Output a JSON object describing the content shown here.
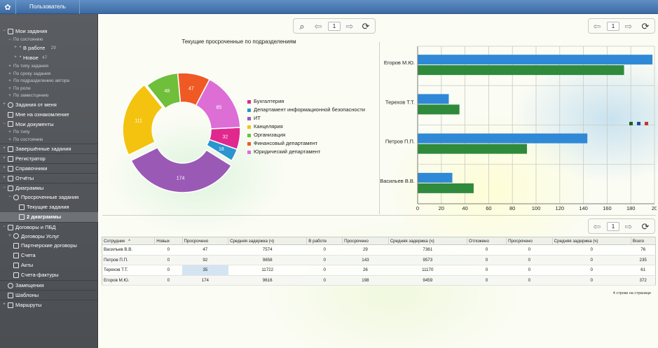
{
  "topbar": {
    "user_tab": "Пользователь",
    "logo_icon": "app-logo-icon"
  },
  "sidebar": {
    "items": [
      {
        "label": "Мои задания",
        "level": 0,
        "expander": "−",
        "icon": "checklist-icon",
        "bold": false
      },
      {
        "label": "По состоянию",
        "level": 1,
        "expander": "−",
        "sub": true
      },
      {
        "label": "В работе",
        "count": "29",
        "level": 2,
        "expander": "+"
      },
      {
        "label": "Новое",
        "count": "47",
        "level": 2,
        "expander": "+"
      },
      {
        "label": "По типу задания",
        "level": 1,
        "expander": "+",
        "sub": true
      },
      {
        "label": "По сроку задания",
        "level": 1,
        "expander": "+",
        "sub": true
      },
      {
        "label": "По подразделению автора",
        "level": 1,
        "expander": "+",
        "sub": true
      },
      {
        "label": "По роли",
        "level": 1,
        "expander": "+",
        "sub": true
      },
      {
        "label": "По заместцению",
        "level": 1,
        "expander": "+",
        "sub": true
      },
      {
        "label": "Задания от меня",
        "level": 0,
        "expander": "+",
        "icon": "pin-icon"
      },
      {
        "label": "Мне на ознакомление",
        "level": 0,
        "expander": "",
        "icon": "document-icon"
      },
      {
        "label": "Мои документы",
        "level": 0,
        "expander": "−",
        "icon": "folder-icon"
      },
      {
        "label": "По типу",
        "level": 1,
        "expander": "+",
        "sub": true
      },
      {
        "label": "По состоянию",
        "level": 1,
        "expander": "+",
        "sub": true
      },
      {
        "label": "Завершённые задания",
        "level": 0,
        "expander": "+",
        "icon": "checklist-icon",
        "sep": true
      },
      {
        "label": "Регистратор",
        "level": 0,
        "expander": "+",
        "icon": "register-icon",
        "sep": true
      },
      {
        "label": "Справочники",
        "level": 0,
        "expander": "+",
        "icon": "book-icon",
        "sep": true
      },
      {
        "label": "Отчёты",
        "level": 0,
        "expander": "+",
        "icon": "report-icon",
        "sep": true
      },
      {
        "label": "Диаграммы",
        "level": 0,
        "expander": "−",
        "icon": "chart-icon",
        "sep": true
      },
      {
        "label": "Просроченные задания",
        "level": 1,
        "expander": "−",
        "icon": "pie-icon"
      },
      {
        "label": "Текущие задания",
        "level": 2,
        "expander": "",
        "icon": "bar-chart-icon"
      },
      {
        "label": "2 диаграммы",
        "level": 2,
        "expander": "",
        "icon": "bar-chart-icon",
        "bold": true,
        "selected": true
      },
      {
        "label": "Договоры и ПБД",
        "level": 0,
        "expander": "−",
        "icon": "contract-icon",
        "sep": true
      },
      {
        "label": "Договоры Услуг",
        "level": 1,
        "expander": "+",
        "icon": "pie-icon"
      },
      {
        "label": "Партнерские договоры",
        "level": 1,
        "expander": "",
        "icon": "document-icon"
      },
      {
        "label": "Счета",
        "level": 1,
        "expander": "",
        "icon": "document-icon"
      },
      {
        "label": "Акты",
        "level": 1,
        "expander": "",
        "icon": "document-icon"
      },
      {
        "label": "Счета-фактуры",
        "level": 1,
        "expander": "",
        "icon": "document-icon"
      },
      {
        "label": "Замещения",
        "level": 0,
        "expander": "",
        "icon": "person-icon",
        "sep": true
      },
      {
        "label": "Шаблоны",
        "level": 0,
        "expander": "",
        "icon": "template-icon",
        "sep": true
      },
      {
        "label": "Маршруты",
        "level": 0,
        "expander": "+",
        "icon": "route-icon",
        "sep": true
      }
    ]
  },
  "pagers": {
    "pie": {
      "page": "1"
    },
    "bar": {
      "page": "1"
    },
    "table": {
      "page": "1"
    }
  },
  "chart_data": [
    {
      "type": "pie",
      "title": "Текущие просроченные по подразделениям",
      "slices": [
        {
          "name": "Бухгалтерия",
          "value": 32,
          "color": "#e0288f"
        },
        {
          "name": "Департамент информационной безопасности",
          "value": 18,
          "color": "#2b95cf"
        },
        {
          "name": "ИТ",
          "value": 174,
          "color": "#9b59b6"
        },
        {
          "name": "Канцелярия",
          "value": 111,
          "color": "#f4c30f"
        },
        {
          "name": "Организация",
          "value": 48,
          "color": "#6fbf3a"
        },
        {
          "name": "Финансовый департамент",
          "value": 47,
          "color": "#ef5a24"
        },
        {
          "name": "Юридический департамент",
          "value": 85,
          "color": "#dc6ed6"
        }
      ]
    },
    {
      "type": "bar",
      "orientation": "horizontal",
      "categories": [
        "Егоров М.Ю.",
        "Терехов Т.Т.",
        "Петров П.П.",
        "Васильев В.В."
      ],
      "series": [
        {
          "values": [
            198,
            26,
            143,
            29
          ],
          "color": "#2f89d6"
        },
        {
          "values": [
            174,
            35,
            92,
            47
          ],
          "color": "#2f8a3c"
        }
      ],
      "xlim": [
        0,
        200
      ],
      "xticks": [
        "0",
        "20",
        "40",
        "60",
        "80",
        "100",
        "120",
        "140",
        "160",
        "180",
        "20"
      ],
      "grid": true,
      "legend_colors": [
        "#1f5f2a",
        "#1f4f9a",
        "#c0392b"
      ]
    }
  ],
  "table": {
    "columns": [
      "Сотрудник",
      "Новых",
      "Просрочено",
      "Средняя задержка (ч)",
      "В работе",
      "Просрочено",
      "Средняя задержка (ч)",
      "Отложено",
      "Просрочено",
      "Средняя задержка (ч)",
      "Всего"
    ],
    "sort_indicator": "^",
    "rows": [
      [
        "Васильев В.В.",
        "0",
        "47",
        "7574",
        "0",
        "29",
        "7361",
        "0",
        "0",
        "0",
        "76"
      ],
      [
        "Петров П.П.",
        "0",
        "92",
        "9858",
        "0",
        "143",
        "9573",
        "0",
        "0",
        "0",
        "235"
      ],
      [
        "Терехов Т.Т.",
        "0",
        "35",
        "11722",
        "0",
        "26",
        "11170",
        "0",
        "0",
        "0",
        "61"
      ],
      [
        "Егоров М.Ю.",
        "0",
        "174",
        "9616",
        "0",
        "198",
        "9459",
        "0",
        "0",
        "0",
        "372"
      ]
    ],
    "footer": "4 строки на странице"
  }
}
